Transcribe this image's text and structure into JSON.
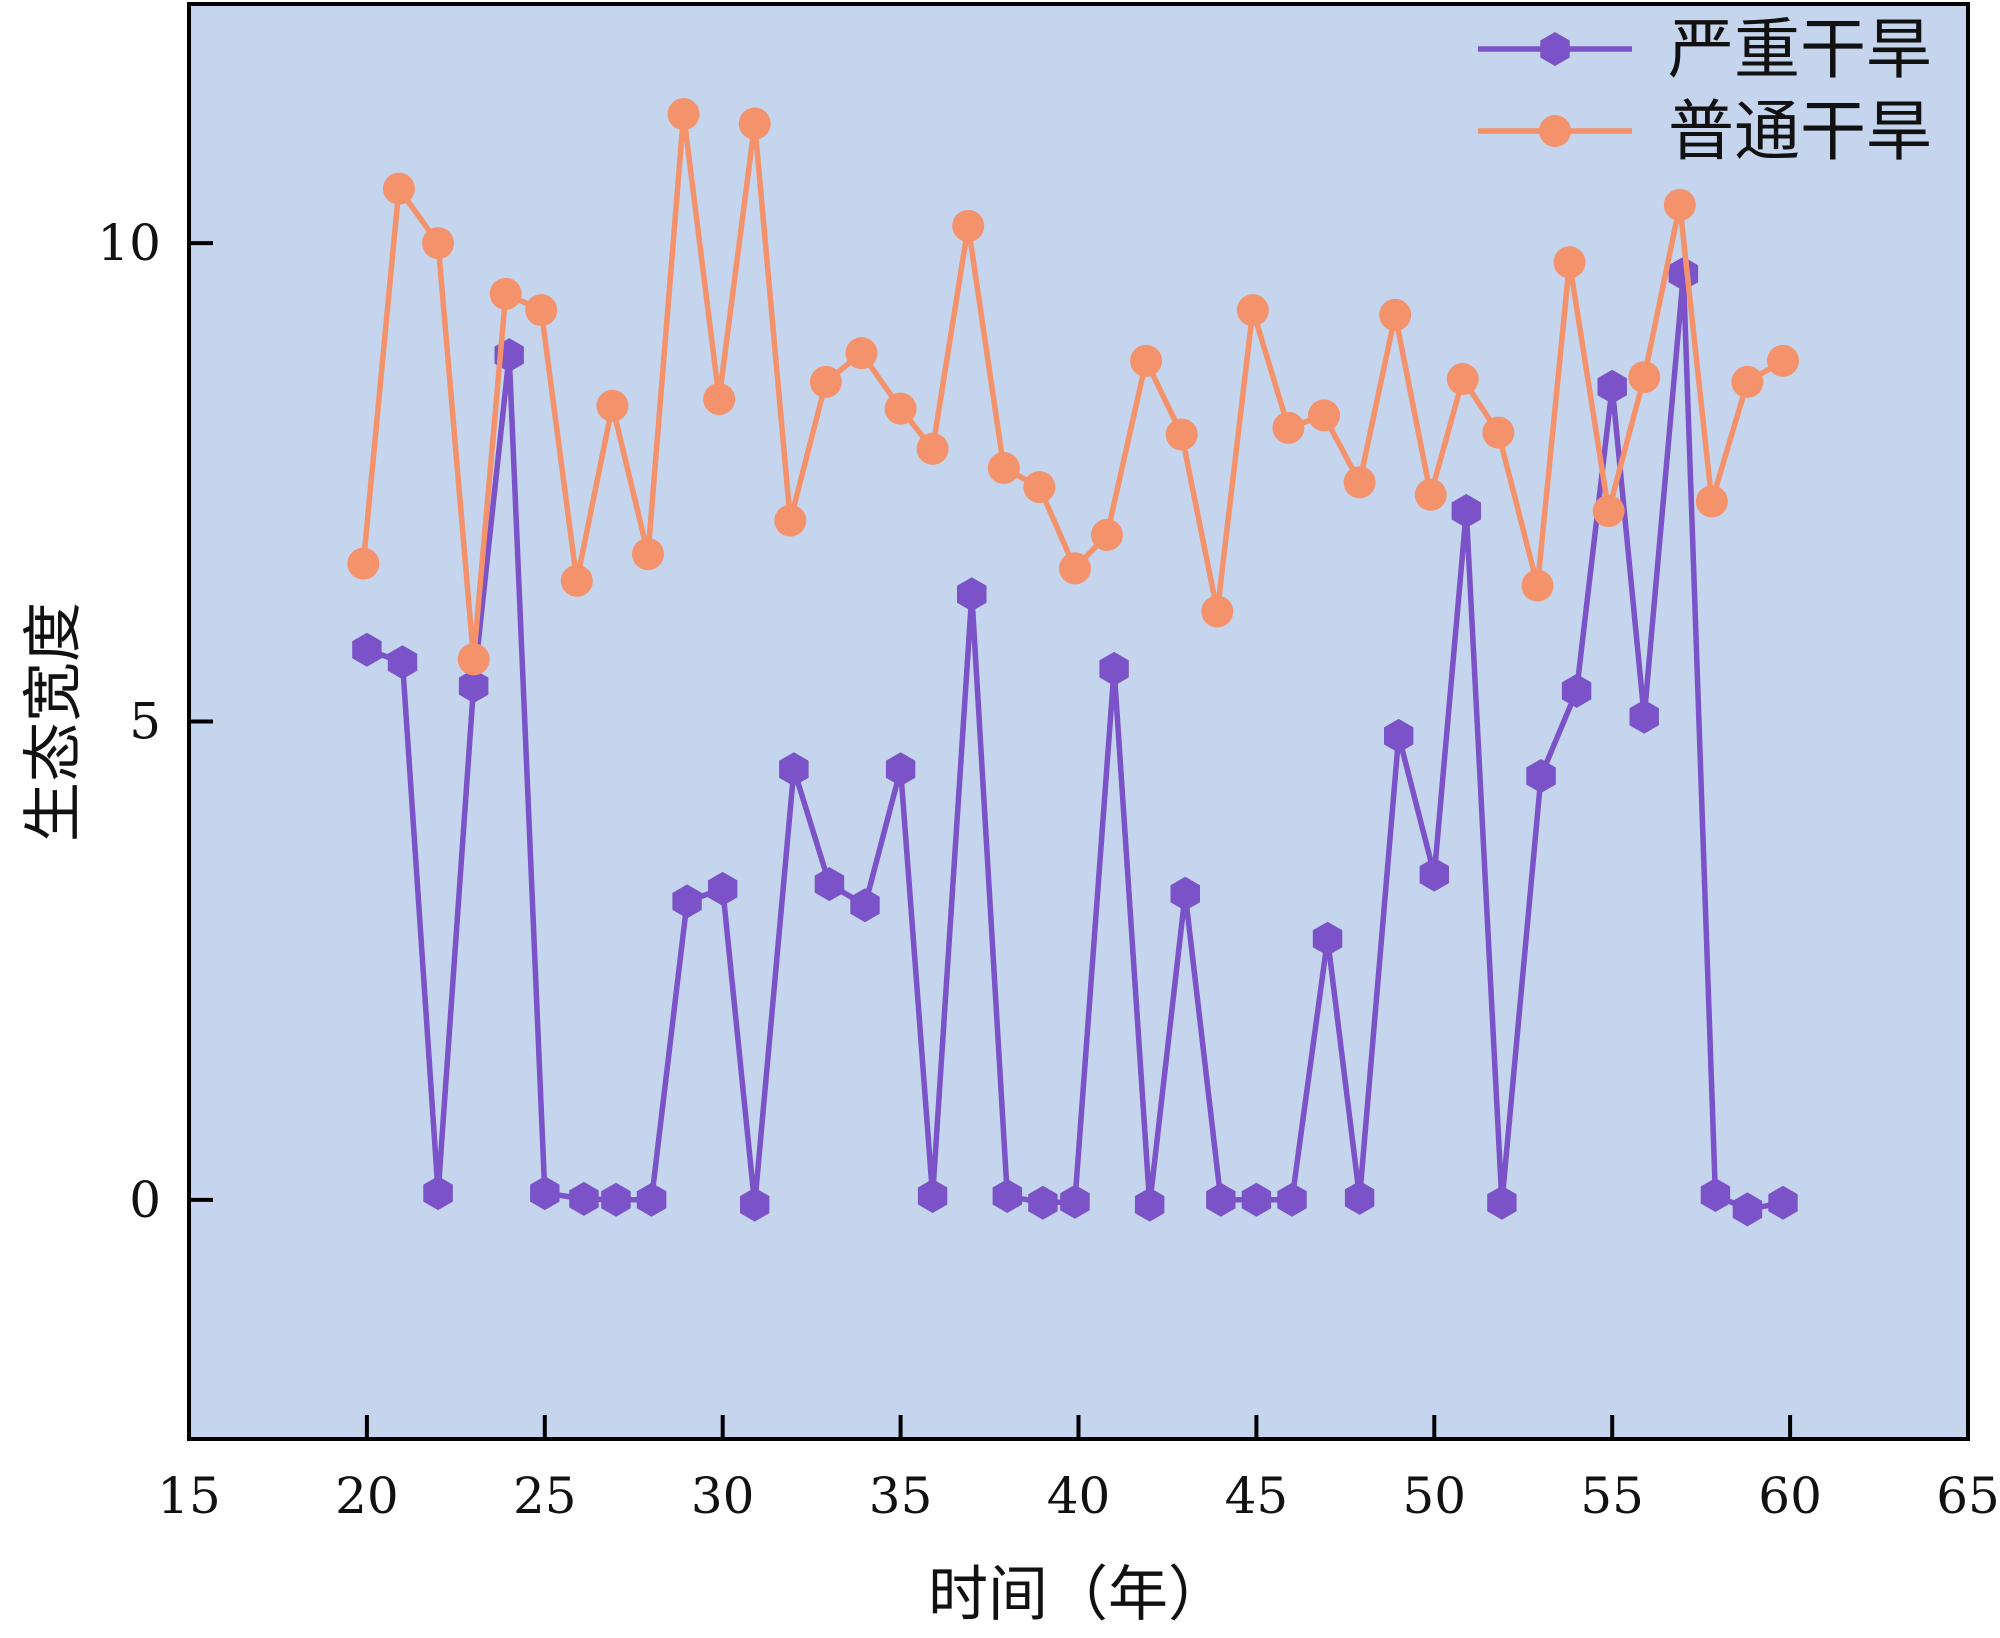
{
  "chart_data": {
    "type": "line",
    "xlabel": "时间（年）",
    "ylabel": "生态宽度",
    "xlim": [
      15,
      65
    ],
    "ylim": [
      -2.5,
      12.5
    ],
    "xticks": [
      15,
      20,
      25,
      30,
      35,
      40,
      45,
      50,
      55,
      60,
      65
    ],
    "yticks": [
      0,
      5,
      10
    ],
    "legend_position": "top-right",
    "plot_background": "#c5d5ee",
    "grid": false,
    "series": [
      {
        "name": "严重干旱",
        "color": "#7b52c8",
        "marker": "hexagon",
        "points": [
          [
            20,
            5.75
          ],
          [
            21,
            5.62
          ],
          [
            22,
            0.07
          ],
          [
            23,
            5.37
          ],
          [
            24,
            8.83
          ],
          [
            25,
            0.07
          ],
          [
            26.1,
            0.01
          ],
          [
            27,
            0.0
          ],
          [
            28,
            0.0
          ],
          [
            29,
            3.12
          ],
          [
            30,
            3.25
          ],
          [
            30.9,
            -0.05
          ],
          [
            32,
            4.5
          ],
          [
            33,
            3.3
          ],
          [
            34,
            3.08
          ],
          [
            35,
            4.5
          ],
          [
            35.9,
            0.04
          ],
          [
            37,
            6.33
          ],
          [
            38,
            0.04
          ],
          [
            39,
            -0.03
          ],
          [
            39.9,
            -0.02
          ],
          [
            41,
            5.55
          ],
          [
            42,
            -0.05
          ],
          [
            43,
            3.2
          ],
          [
            44,
            0.0
          ],
          [
            45,
            0.0
          ],
          [
            46,
            0.0
          ],
          [
            47,
            2.73
          ],
          [
            47.9,
            0.02
          ],
          [
            49,
            4.85
          ],
          [
            50,
            3.4
          ],
          [
            50.9,
            7.2
          ],
          [
            51.9,
            -0.03
          ],
          [
            53,
            4.43
          ],
          [
            54,
            5.32
          ],
          [
            55,
            8.5
          ],
          [
            55.9,
            5.05
          ],
          [
            57,
            9.68
          ],
          [
            57.9,
            0.05
          ],
          [
            58.8,
            -0.1
          ],
          [
            59.8,
            -0.03
          ]
        ]
      },
      {
        "name": "普通干旱",
        "color": "#f4926c",
        "marker": "circle",
        "points": [
          [
            19.9,
            6.65
          ],
          [
            20.9,
            10.57
          ],
          [
            22,
            10.0
          ],
          [
            23,
            5.65
          ],
          [
            23.9,
            9.47
          ],
          [
            24.9,
            9.3
          ],
          [
            25.9,
            6.47
          ],
          [
            26.9,
            8.3
          ],
          [
            27.9,
            6.75
          ],
          [
            28.9,
            11.35
          ],
          [
            29.9,
            8.37
          ],
          [
            30.9,
            11.25
          ],
          [
            31.9,
            7.1
          ],
          [
            32.9,
            8.55
          ],
          [
            33.9,
            8.85
          ],
          [
            35,
            8.27
          ],
          [
            35.9,
            7.85
          ],
          [
            36.9,
            10.18
          ],
          [
            37.9,
            7.65
          ],
          [
            38.9,
            7.45
          ],
          [
            39.9,
            6.6
          ],
          [
            40.8,
            6.95
          ],
          [
            41.9,
            8.77
          ],
          [
            42.9,
            8.0
          ],
          [
            43.9,
            6.15
          ],
          [
            44.9,
            9.3
          ],
          [
            45.9,
            8.07
          ],
          [
            46.9,
            8.2
          ],
          [
            47.9,
            7.5
          ],
          [
            48.9,
            9.25
          ],
          [
            49.9,
            7.37
          ],
          [
            50.8,
            8.58
          ],
          [
            51.8,
            8.02
          ],
          [
            52.9,
            6.42
          ],
          [
            53.8,
            9.8
          ],
          [
            54.9,
            7.2
          ],
          [
            55.9,
            8.6
          ],
          [
            56.9,
            10.4
          ],
          [
            57.8,
            7.3
          ],
          [
            58.8,
            8.55
          ],
          [
            59.8,
            8.77
          ]
        ]
      }
    ]
  }
}
